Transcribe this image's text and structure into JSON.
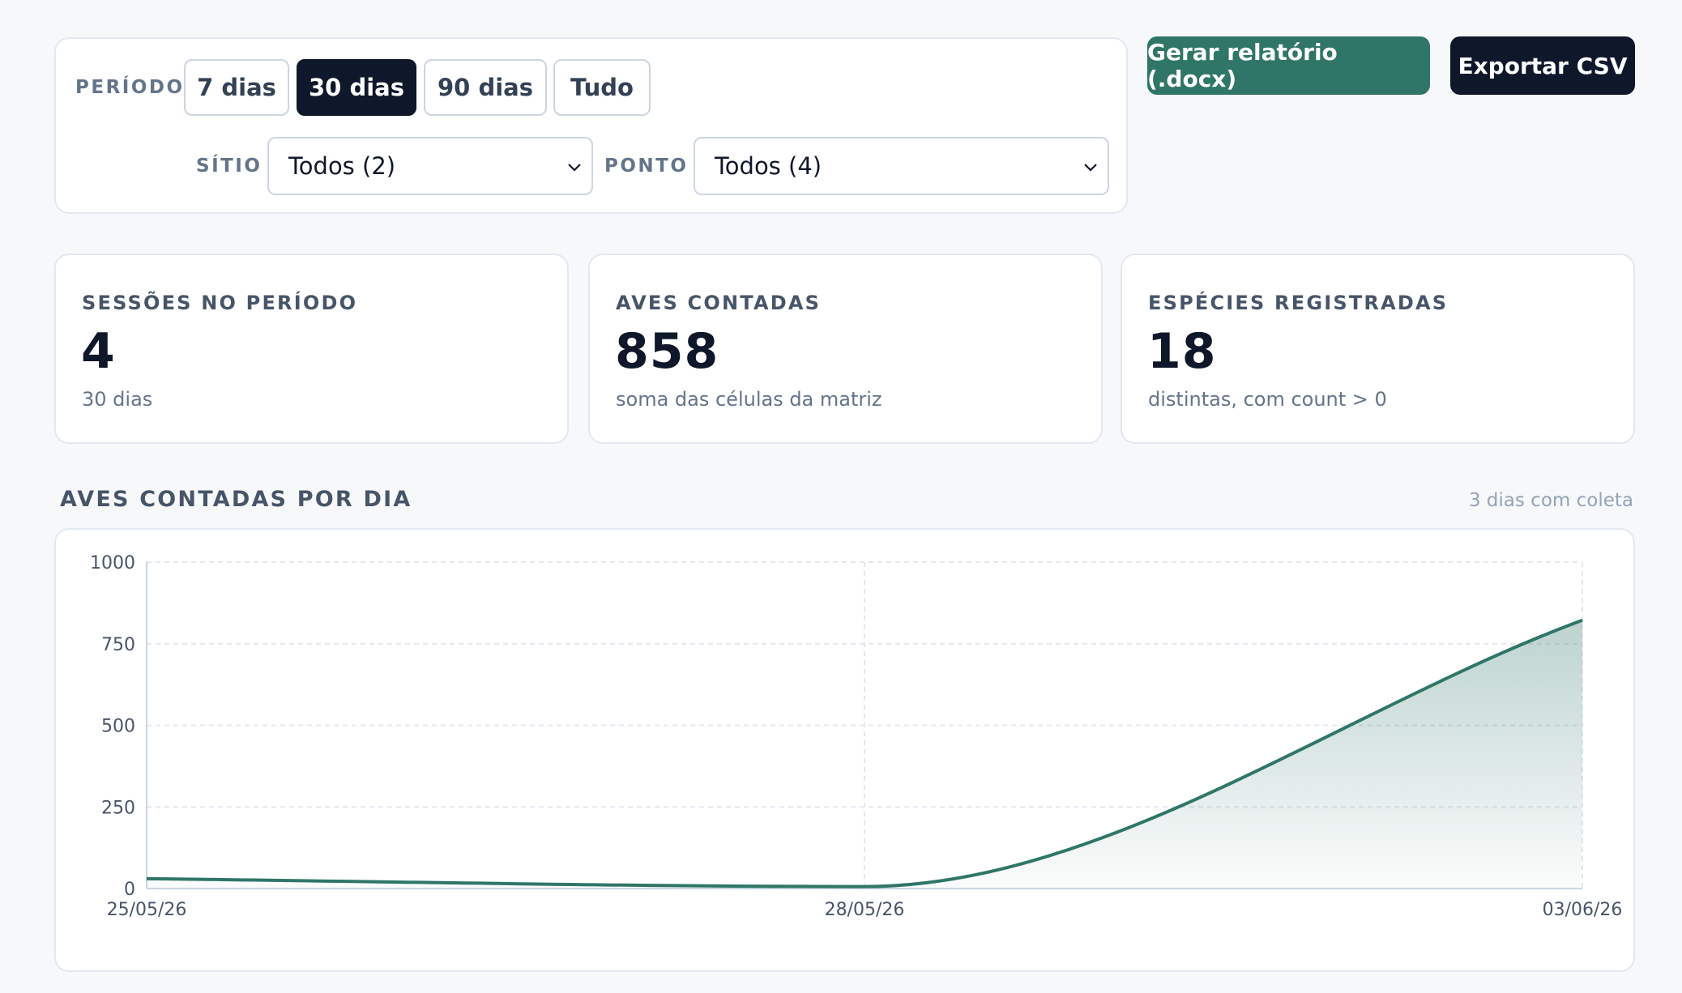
{
  "filters": {
    "period_label": "PERÍODO",
    "period_options": [
      "7 dias",
      "30 dias",
      "90 dias",
      "Tudo"
    ],
    "period_selected": "30 dias",
    "site_label": "SÍTIO",
    "site_value": "Todos (2)",
    "point_label": "PONTO",
    "point_value": "Todos (4)"
  },
  "actions": {
    "report_label": "Gerar relatório (.docx)",
    "report_color": "#2f7668",
    "export_label": "Exportar CSV",
    "export_color": "#0f172a"
  },
  "stats": [
    {
      "label": "SESSÕES NO PERÍODO",
      "value": "4",
      "sub": "30 dias"
    },
    {
      "label": "AVES CONTADAS",
      "value": "858",
      "sub": "soma das células da matriz"
    },
    {
      "label": "ESPÉCIES REGISTRADAS",
      "value": "18",
      "sub": "distintas, com count > 0"
    }
  ],
  "chart_section": {
    "title": "AVES CONTADAS POR DIA",
    "meta": "3 dias com coleta"
  },
  "chart_data": {
    "type": "area",
    "x": [
      "25/05/26",
      "28/05/26",
      "03/06/26"
    ],
    "series": [
      {
        "values": [
          30,
          6,
          822
        ]
      }
    ],
    "ylim": [
      0,
      1000
    ],
    "yticks": [
      0,
      250,
      500,
      750,
      1000
    ],
    "grid": true,
    "line_color": "#2f7668"
  }
}
